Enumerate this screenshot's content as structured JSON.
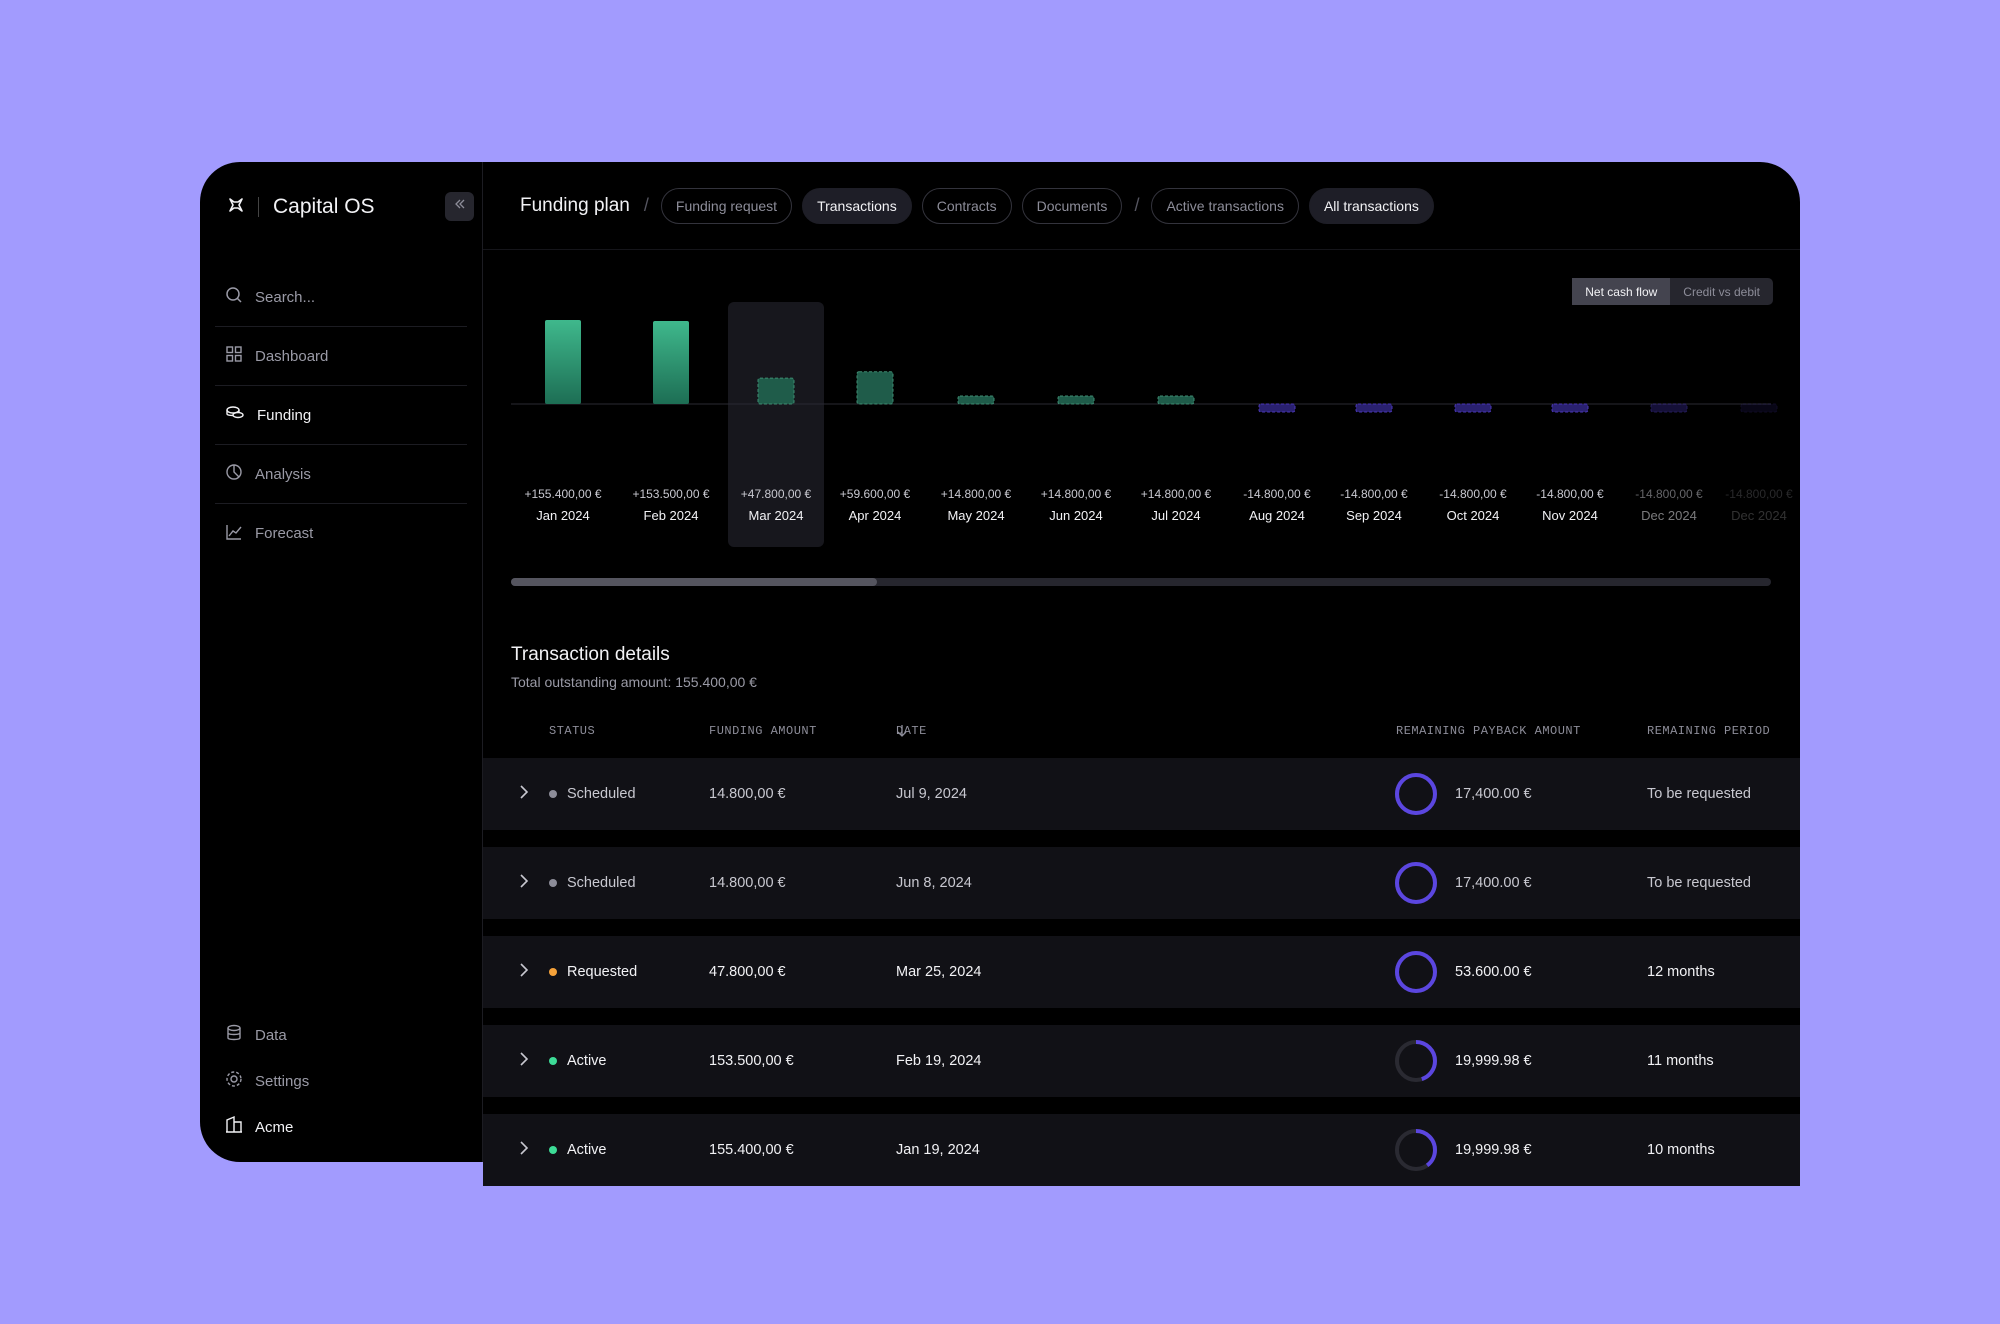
{
  "brand": {
    "name": "Capital OS"
  },
  "sidebar": {
    "search_placeholder": "Search...",
    "items": [
      {
        "label": "Dashboard",
        "icon": "grid-icon"
      },
      {
        "label": "Funding",
        "icon": "coins-icon",
        "active": true
      },
      {
        "label": "Analysis",
        "icon": "pie-icon"
      },
      {
        "label": "Forecast",
        "icon": "chart-line-icon"
      }
    ],
    "bottom": [
      {
        "label": "Data",
        "icon": "database-icon"
      },
      {
        "label": "Settings",
        "icon": "gear-icon"
      },
      {
        "label": "Acme",
        "icon": "building-icon"
      }
    ]
  },
  "breadcrumb": {
    "title": "Funding plan",
    "pills_group1": [
      "Funding request",
      "Transactions",
      "Contracts",
      "Documents"
    ],
    "pills_group2": [
      "Active transactions",
      "All transactions"
    ]
  },
  "toggle": {
    "on": "Net cash flow",
    "off": "Credit vs debit"
  },
  "chart_data": {
    "type": "bar",
    "categories": [
      "Jan 2024",
      "Feb 2024",
      "Mar 2024",
      "Apr 2024",
      "May 2024",
      "Jun 2024",
      "Jul 2024",
      "Aug 2024",
      "Sep 2024",
      "Oct 2024",
      "Nov 2024",
      "Dec 2024",
      "Dec 2024"
    ],
    "values": [
      155400,
      153500,
      47800,
      59600,
      14800,
      14800,
      14800,
      -14800,
      -14800,
      -14800,
      -14800,
      -14800,
      -14800
    ],
    "value_labels": [
      "+155.400,00 €",
      "+153.500,00 €",
      "+47.800,00 €",
      "+59.600,00 €",
      "+14.800,00 €",
      "+14.800,00 €",
      "+14.800,00 €",
      "-14.800,00 €",
      "-14.800,00 €",
      "-14.800,00 €",
      "-14.800,00 €",
      "-14.800,00 €",
      "-14.800,00 €"
    ],
    "selected": "Mar 2024",
    "colors": {
      "funded": "#2e9c78",
      "planned": "#1f5c4a",
      "negative": "#4b38b8"
    }
  },
  "details": {
    "title": "Transaction details",
    "subtitle": "Total outstanding amount: 155.400,00 €",
    "columns": [
      "STATUS",
      "FUNDING AMOUNT",
      "DATE",
      "REMAINING PAYBACK AMOUNT",
      "REMAINING PERIOD"
    ],
    "rows": [
      {
        "status": "Scheduled",
        "status_color": "#8d8d99",
        "amount": "14.800,00 €",
        "date": "Jul 9, 2024",
        "payback": "17,400.00 €",
        "period": "To be requested",
        "progress": 1.0
      },
      {
        "status": "Scheduled",
        "status_color": "#8d8d99",
        "amount": "14.800,00 €",
        "date": "Jun 8, 2024",
        "payback": "17,400.00 €",
        "period": "To be requested",
        "progress": 1.0
      },
      {
        "status": "Requested",
        "status_color": "#f5a23a",
        "amount": "47.800,00 €",
        "date": "Mar 25, 2024",
        "payback": "53.600.00 €",
        "period": "12 months",
        "progress": 1.0
      },
      {
        "status": "Active",
        "status_color": "#3ddc97",
        "amount": "153.500,00 €",
        "date": "Feb 19, 2024",
        "payback": "19,999.98 €",
        "period": "11 months",
        "progress": 0.45
      },
      {
        "status": "Active",
        "status_color": "#3ddc97",
        "amount": "155.400,00 €",
        "date": "Jan 19, 2024",
        "payback": "19,999.98 €",
        "period": "10 months",
        "progress": 0.4
      }
    ]
  }
}
